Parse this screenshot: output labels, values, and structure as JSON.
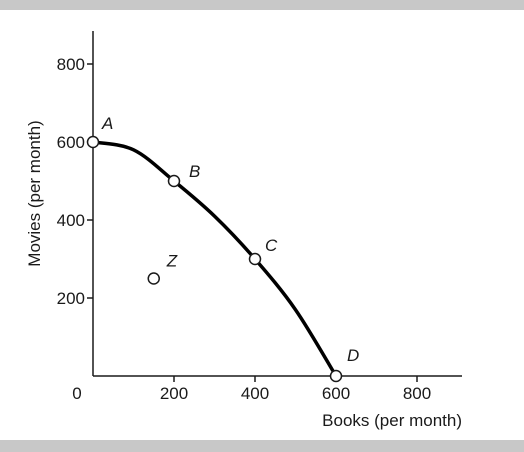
{
  "chart_data": {
    "type": "line",
    "title": "",
    "xlabel": "Books (per month)",
    "ylabel": "Movies (per month)",
    "xlim": [
      0,
      900
    ],
    "ylim": [
      0,
      900
    ],
    "x_ticks": [
      200,
      400,
      600,
      800
    ],
    "y_ticks": [
      200,
      400,
      600,
      800
    ],
    "origin_label": "0",
    "grid": false,
    "curve": [
      {
        "x": 0,
        "y": 600
      },
      {
        "x": 100,
        "y": 580
      },
      {
        "x": 200,
        "y": 500
      },
      {
        "x": 300,
        "y": 410
      },
      {
        "x": 400,
        "y": 300
      },
      {
        "x": 500,
        "y": 170
      },
      {
        "x": 600,
        "y": 0
      }
    ],
    "points": [
      {
        "label": "A",
        "x": 0,
        "y": 600
      },
      {
        "label": "B",
        "x": 200,
        "y": 500
      },
      {
        "label": "C",
        "x": 400,
        "y": 300
      },
      {
        "label": "D",
        "x": 600,
        "y": 0
      },
      {
        "label": "Z",
        "x": 150,
        "y": 250
      }
    ]
  }
}
